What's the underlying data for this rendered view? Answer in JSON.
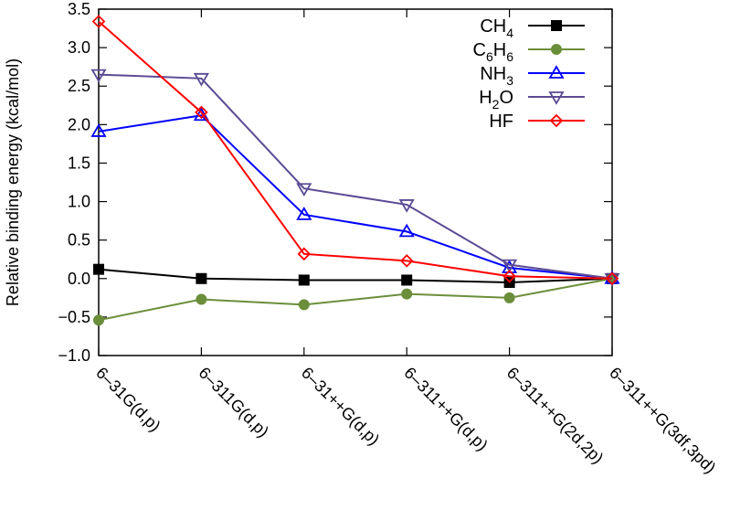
{
  "chart_data": {
    "type": "line",
    "title": "",
    "xlabel": "",
    "ylabel": "Relative binding energy (kcal/mol)",
    "ylim": [
      -1.0,
      3.5
    ],
    "yticks": [
      "-1.0",
      "-0.5",
      "0.0",
      "0.5",
      "1.0",
      "1.5",
      "2.0",
      "2.5",
      "3.0",
      "3.5"
    ],
    "categories": [
      "6-31G(d,p)",
      "6-311G(d,p)",
      "6-31++G(d,p)",
      "6-311++G(d,p)",
      "6-311++G(2d,2p)",
      "6-311++G(3df,3pd)"
    ],
    "grid": false,
    "legend_position": "top-right",
    "series": [
      {
        "name": "CH4",
        "color": "#000000",
        "marker": "filled-square",
        "values": [
          0.12,
          0.0,
          -0.02,
          -0.02,
          -0.05,
          0.0
        ]
      },
      {
        "name": "C6H6",
        "color": "#6b8e3a",
        "marker": "filled-circle",
        "values": [
          -0.54,
          -0.27,
          -0.34,
          -0.2,
          -0.25,
          0.0
        ]
      },
      {
        "name": "NH3",
        "color": "#0000ff",
        "marker": "open-triangle-up",
        "values": [
          1.91,
          2.12,
          0.83,
          0.61,
          0.14,
          0.0
        ]
      },
      {
        "name": "H2O",
        "color": "#5b4a94",
        "marker": "open-triangle-down",
        "values": [
          2.65,
          2.6,
          1.17,
          0.96,
          0.18,
          0.0
        ]
      },
      {
        "name": "HF",
        "color": "#ff0000",
        "marker": "open-diamond",
        "values": [
          3.34,
          2.16,
          0.32,
          0.23,
          0.03,
          0.0
        ]
      }
    ]
  }
}
